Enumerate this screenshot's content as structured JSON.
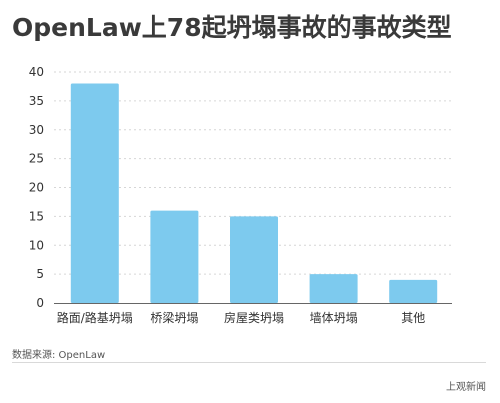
{
  "chart_data": {
    "type": "bar",
    "title": "OpenLaw上78起坍塌事故的事故类型",
    "categories": [
      "路面/路基坍塌",
      "桥梁坍塌",
      "房屋类坍塌",
      "墙体坍塌",
      "其他"
    ],
    "values": [
      38,
      16,
      15,
      5,
      4
    ],
    "ylim": [
      0,
      40
    ],
    "yticks": [
      0,
      5,
      10,
      15,
      20,
      25,
      30,
      35,
      40
    ],
    "grid": true,
    "bar_color": "#7dcaee",
    "xlabel": "",
    "ylabel": ""
  },
  "source": "数据来源: OpenLaw",
  "publisher": "上观新闻"
}
